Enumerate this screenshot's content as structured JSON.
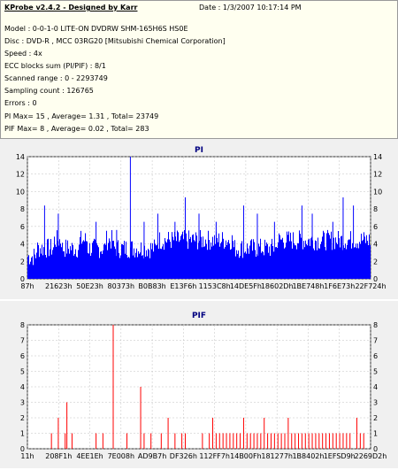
{
  "app": {
    "title": "KProbe v2.4.2 - Designed by Karr",
    "date": "Date : 1/3/2007 10:17:14 PM"
  },
  "info_lines": [
    "Model : 0-0-1-0 LITE-ON DVDRW SHM-165H6S HS0E",
    "Disc : DVD-R , MCC 03RG20  [Mitsubishi Chemical Corporation]",
    "Speed : 4x",
    "ECC blocks sum (PI/PIF) : 8/1",
    "Scanned range : 0 - 2293749",
    "Sampling count : 126765",
    "Errors : 0",
    "PI Max= 15 , Average= 1.31 , Total= 23749",
    "PIF Max= 8 , Average= 0.02 , Total= 283"
  ],
  "chart_data": [
    {
      "type": "bar",
      "title": "PI",
      "color": "#0000ff",
      "ylim": [
        0,
        15
      ],
      "yticks": [
        "0",
        "2",
        "4",
        "6",
        "8",
        "10",
        "12",
        "14"
      ],
      "xticks": [
        "87h",
        "21623h",
        "50E23h",
        "80373h",
        "B0B83h",
        "E13F6h",
        "1153C8h",
        "14DE5Fh",
        "18602Dh",
        "1BE748h",
        "1F6E73h",
        "22F724h"
      ],
      "series": [
        {
          "profile": [
            3,
            4,
            4,
            5,
            4,
            4,
            5,
            4,
            4,
            5,
            4,
            4,
            4,
            4,
            4,
            5,
            5,
            5,
            5,
            5,
            5,
            5,
            5,
            5,
            4,
            4,
            4,
            4,
            4,
            5,
            5,
            5,
            5,
            5,
            5,
            5,
            5,
            5,
            5,
            5
          ],
          "peaks": [
            [
              0.05,
              9
            ],
            [
              0.09,
              8
            ],
            [
              0.2,
              7
            ],
            [
              0.26,
              6
            ],
            [
              0.3,
              15
            ],
            [
              0.34,
              7
            ],
            [
              0.38,
              8
            ],
            [
              0.43,
              7
            ],
            [
              0.46,
              10
            ],
            [
              0.5,
              8
            ],
            [
              0.55,
              7
            ],
            [
              0.63,
              9
            ],
            [
              0.67,
              8
            ],
            [
              0.72,
              7
            ],
            [
              0.8,
              9
            ],
            [
              0.83,
              8
            ],
            [
              0.89,
              7
            ],
            [
              0.92,
              10
            ],
            [
              0.95,
              9
            ]
          ]
        }
      ]
    },
    {
      "type": "bar",
      "title": "PIF",
      "color": "#ff0000",
      "ylim": [
        0,
        8
      ],
      "yticks": [
        "0",
        "1",
        "2",
        "3",
        "4",
        "5",
        "6",
        "7",
        "8"
      ],
      "xticks": [
        "11h",
        "208F1h",
        "4EE1Eh",
        "7E008h",
        "AD9B7h",
        "DF326h",
        "112FF7h",
        "14B00Fh",
        "181277h",
        "1B8402h",
        "1EFSD9h",
        "2269D2h"
      ],
      "series": [
        {
          "spikes": [
            [
              0.07,
              1
            ],
            [
              0.09,
              2
            ],
            [
              0.11,
              1
            ],
            [
              0.115,
              3
            ],
            [
              0.13,
              1
            ],
            [
              0.2,
              1
            ],
            [
              0.22,
              1
            ],
            [
              0.25,
              8
            ],
            [
              0.29,
              1
            ],
            [
              0.33,
              4
            ],
            [
              0.34,
              1
            ],
            [
              0.36,
              1
            ],
            [
              0.39,
              1
            ],
            [
              0.41,
              2
            ],
            [
              0.43,
              1
            ],
            [
              0.45,
              1
            ],
            [
              0.46,
              1
            ],
            [
              0.51,
              1
            ],
            [
              0.53,
              1
            ],
            [
              0.54,
              2
            ],
            [
              0.55,
              1
            ],
            [
              0.56,
              1
            ],
            [
              0.57,
              1
            ],
            [
              0.58,
              1
            ],
            [
              0.59,
              1
            ],
            [
              0.6,
              1
            ],
            [
              0.61,
              1
            ],
            [
              0.62,
              1
            ],
            [
              0.63,
              2
            ],
            [
              0.64,
              1
            ],
            [
              0.65,
              1
            ],
            [
              0.66,
              1
            ],
            [
              0.67,
              1
            ],
            [
              0.68,
              1
            ],
            [
              0.69,
              2
            ],
            [
              0.7,
              1
            ],
            [
              0.71,
              1
            ],
            [
              0.72,
              1
            ],
            [
              0.73,
              1
            ],
            [
              0.74,
              1
            ],
            [
              0.75,
              1
            ],
            [
              0.76,
              2
            ],
            [
              0.77,
              1
            ],
            [
              0.78,
              1
            ],
            [
              0.79,
              1
            ],
            [
              0.8,
              1
            ],
            [
              0.81,
              1
            ],
            [
              0.82,
              1
            ],
            [
              0.83,
              1
            ],
            [
              0.84,
              1
            ],
            [
              0.85,
              1
            ],
            [
              0.86,
              1
            ],
            [
              0.87,
              1
            ],
            [
              0.88,
              1
            ],
            [
              0.89,
              1
            ],
            [
              0.9,
              1
            ],
            [
              0.91,
              1
            ],
            [
              0.92,
              1
            ],
            [
              0.93,
              1
            ],
            [
              0.94,
              1
            ],
            [
              0.96,
              2
            ],
            [
              0.97,
              1
            ],
            [
              0.98,
              1
            ]
          ]
        }
      ]
    }
  ]
}
